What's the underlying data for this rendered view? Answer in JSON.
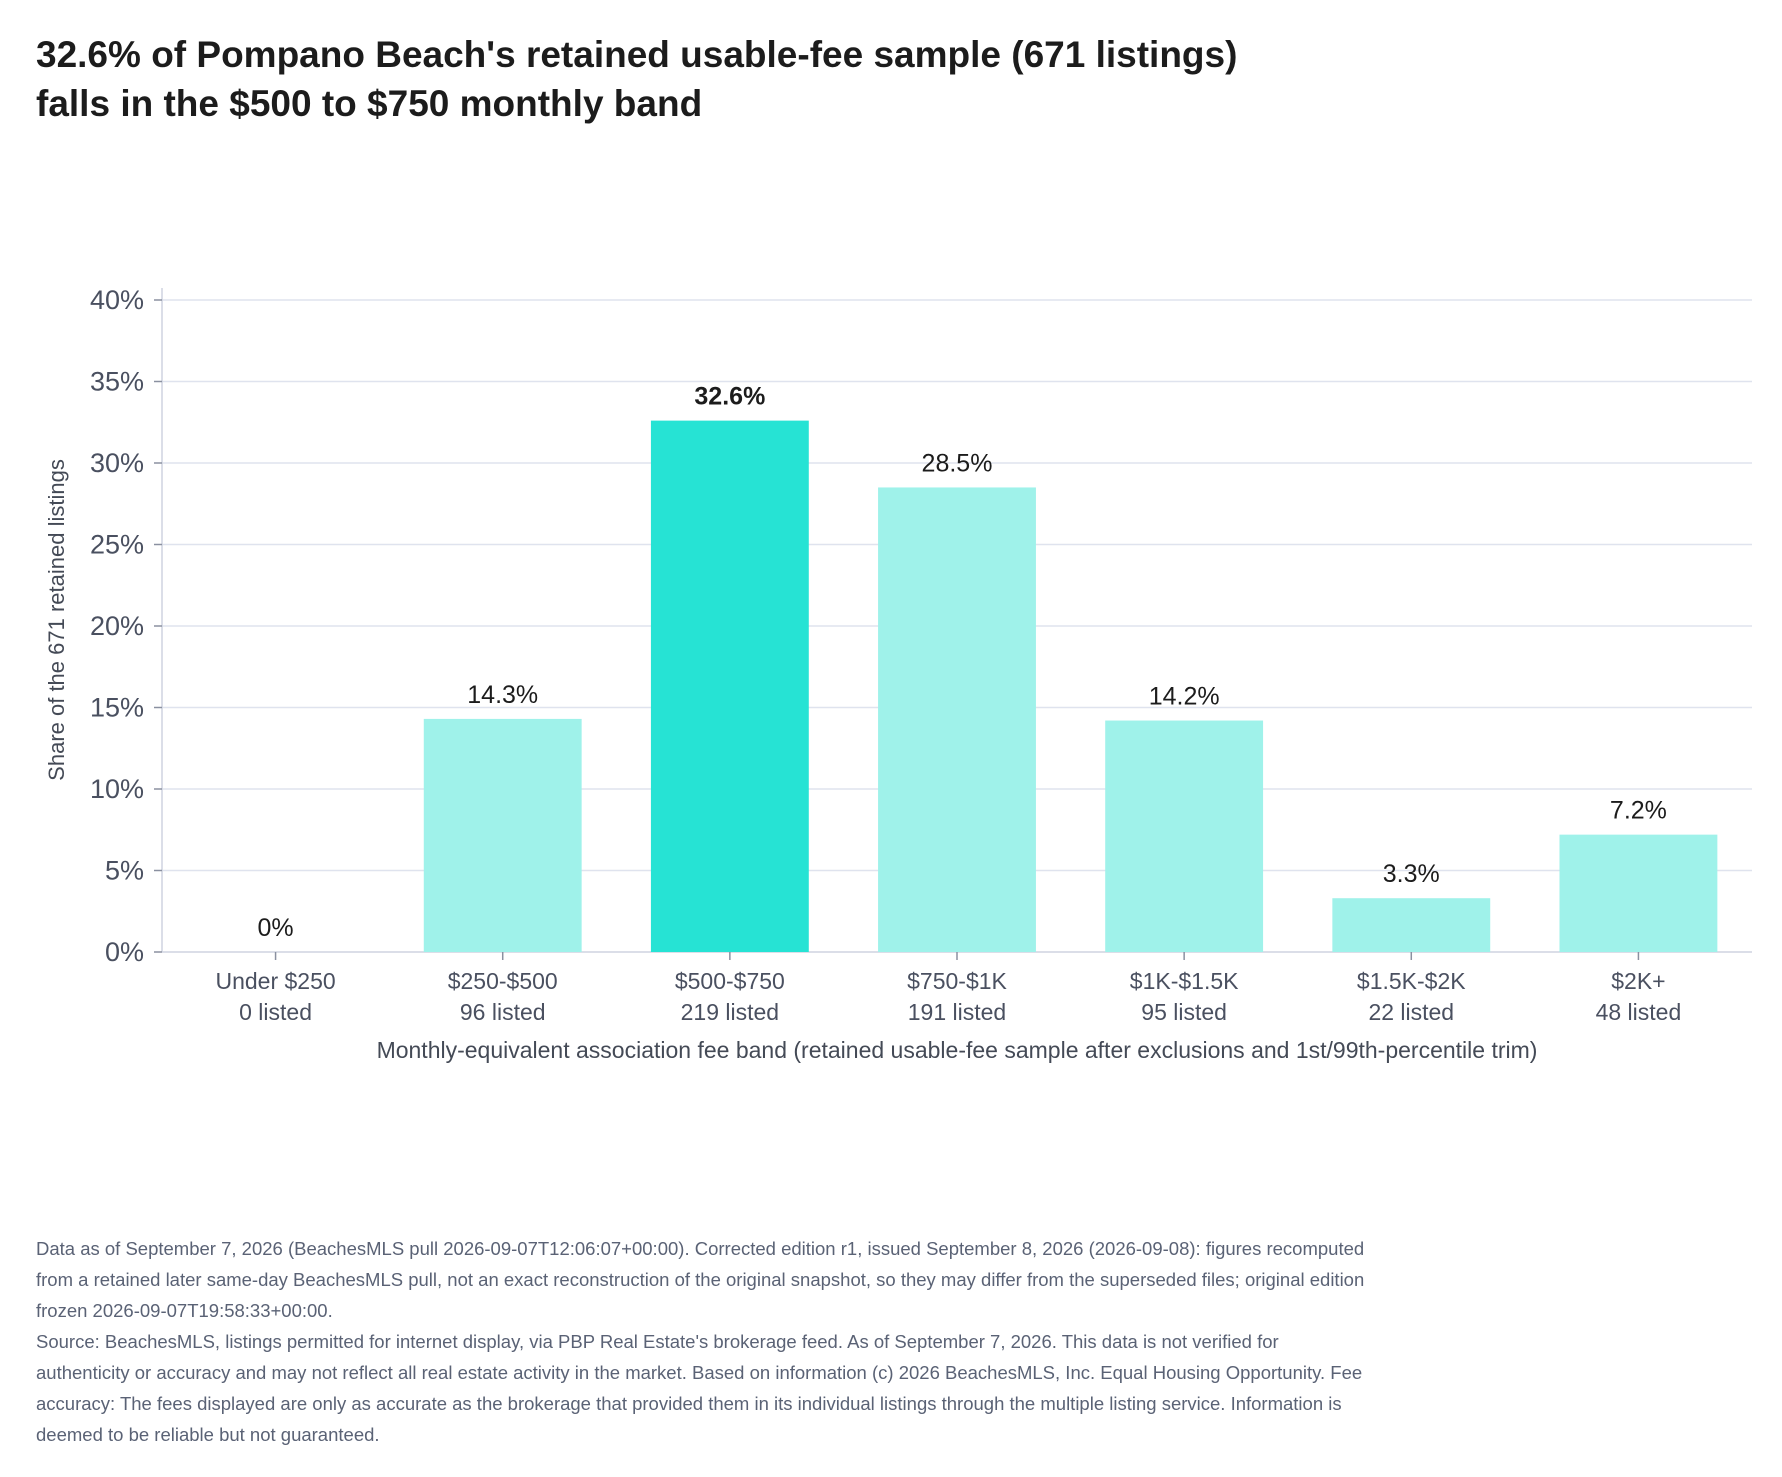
{
  "title_lines": [
    "32.6% of Pompano Beach's retained usable-fee sample (671 listings)",
    "falls in the $500 to $750 monthly band"
  ],
  "chart_data": {
    "type": "bar",
    "categories": [
      "Under $250",
      "$250-$500",
      "$500-$750",
      "$750-$1K",
      "$1K-$1.5K",
      "$1.5K-$2K",
      "$2K+"
    ],
    "counts_labels": [
      "0 listed",
      "96 listed",
      "219 listed",
      "191 listed",
      "95 listed",
      "22 listed",
      "48 listed"
    ],
    "values": [
      0,
      14.3,
      32.6,
      28.5,
      14.2,
      3.3,
      7.2
    ],
    "value_labels": [
      "0%",
      "14.3%",
      "32.6%",
      "28.5%",
      "14.2%",
      "3.3%",
      "7.2%"
    ],
    "highlight_index": 2,
    "ylim": [
      0,
      40
    ],
    "yticks": [
      0,
      5,
      10,
      15,
      20,
      25,
      30,
      35,
      40
    ],
    "ytick_labels": [
      "0%",
      "5%",
      "10%",
      "15%",
      "20%",
      "25%",
      "30%",
      "35%",
      "40%"
    ],
    "ylabel": "Share of the 671 retained listings",
    "xlabel": "Monthly-equivalent association fee band (retained usable-fee sample after exclusions and 1st/99th-percentile trim)",
    "grid": true,
    "colors": {
      "bar": "#9ff2ea",
      "highlight": "#26e3d4",
      "grid": "#dfe3ee",
      "axis": "#cfd4e0"
    }
  },
  "notes": {
    "data_note": "Data as of September 7, 2026 (BeachesMLS pull 2026-09-07T12:06:07+00:00). Corrected edition r1, issued September 8, 2026 (2026-09-08): figures recomputed from a retained later same-day BeachesMLS pull, not an exact reconstruction of the original snapshot, so they may differ from the superseded files; original edition frozen 2026-09-07T19:58:33+00:00.",
    "source_note": "Source: BeachesMLS, listings permitted for internet display, via PBP Real Estate's brokerage feed. As of September 7, 2026. This data is not verified for authenticity or accuracy and may not reflect all real estate activity in the market. Based on information (c) 2026 BeachesMLS, Inc. Equal Housing Opportunity. Fee accuracy: The fees displayed are only as accurate as the brokerage that provided them in its individual listings through the multiple listing service. Information is deemed to be reliable but not guaranteed."
  }
}
